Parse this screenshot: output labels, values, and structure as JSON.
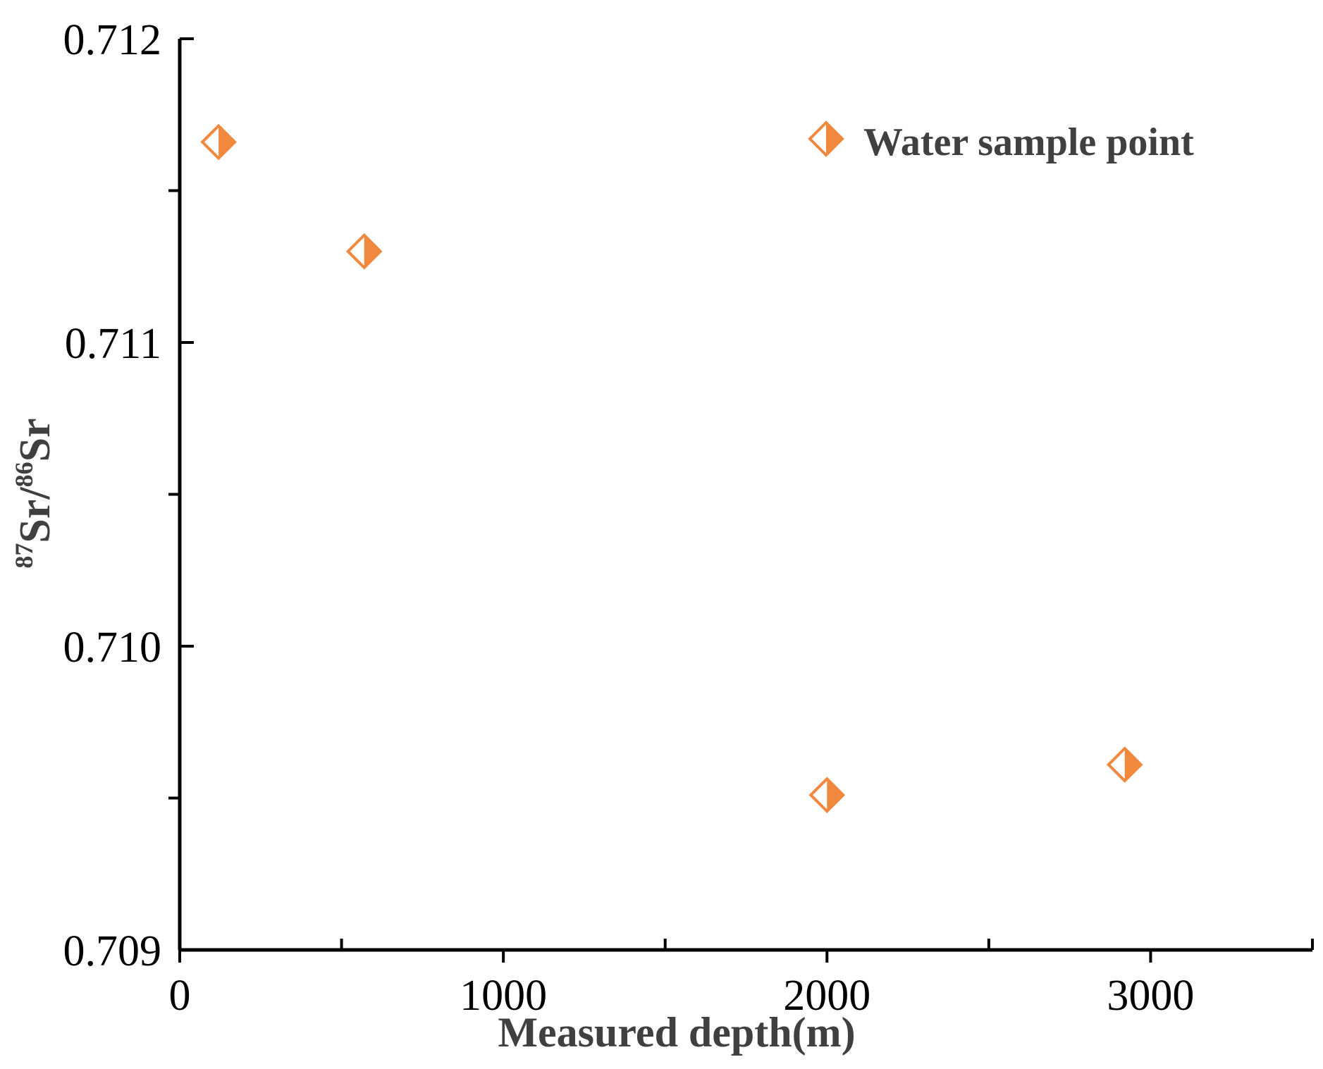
{
  "chart_data": {
    "type": "scatter",
    "xlabel": "Measured depth(m)",
    "ylabel": {
      "sup1": "87",
      "part1": "Sr/",
      "sup2": "86",
      "part2": "Sr"
    },
    "xlim": [
      0,
      3500
    ],
    "ylim": [
      0.709,
      0.712
    ],
    "x_ticks": [
      0,
      1000,
      2000,
      3000
    ],
    "x_tick_labels": [
      "0",
      "1000",
      "2000",
      "3000"
    ],
    "x_minor_ticks": [
      500,
      1500,
      2500,
      3500
    ],
    "y_ticks": [
      0.709,
      0.71,
      0.711,
      0.712
    ],
    "y_tick_labels": [
      "0.709",
      "0.710",
      "0.711",
      "0.712"
    ],
    "y_minor_ticks": [
      0.7095,
      0.7105,
      0.7115
    ],
    "grid": false,
    "legend_position": "top-right",
    "series": [
      {
        "name": "Water sample point",
        "marker": "half-filled-diamond",
        "color": "#f0883e",
        "points": [
          {
            "x": 120,
            "y": 0.71166
          },
          {
            "x": 570,
            "y": 0.7113
          },
          {
            "x": 2000,
            "y": 0.70951
          },
          {
            "x": 2920,
            "y": 0.70961
          }
        ]
      }
    ]
  }
}
